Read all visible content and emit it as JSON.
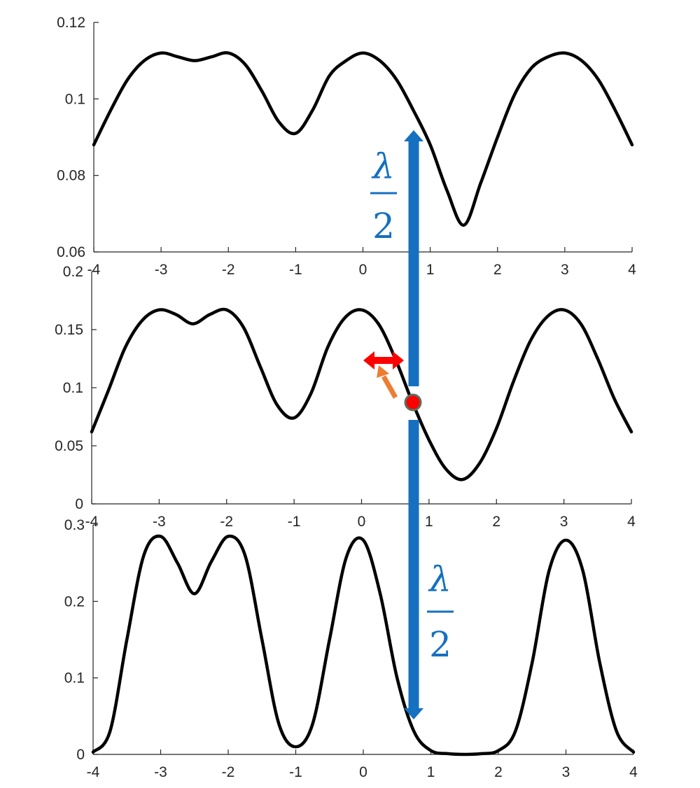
{
  "chart_data": [
    {
      "type": "line",
      "panel": "top",
      "xlim": [
        -4,
        4
      ],
      "ylim": [
        0.06,
        0.12
      ],
      "xticks": [
        "-4",
        "-3",
        "-2",
        "-1",
        "0",
        "1",
        "2",
        "3",
        "4"
      ],
      "yticks": [
        "0.06",
        "0.08",
        "0.1",
        "0.12"
      ],
      "grid": false,
      "series": [
        {
          "color": "#000000",
          "x": [
            -4,
            -3.75,
            -3.5,
            -3.25,
            -3,
            -2.75,
            -2.5,
            -2.25,
            -2,
            -1.75,
            -1.5,
            -1.25,
            -1,
            -0.75,
            -0.5,
            -0.25,
            0,
            0.25,
            0.5,
            0.75,
            1,
            1.25,
            1.5,
            1.75,
            2,
            2.25,
            2.5,
            2.75,
            3,
            3.25,
            3.5,
            3.75,
            4
          ],
          "y": [
            0.088,
            0.097,
            0.105,
            0.11,
            0.112,
            0.111,
            0.11,
            0.111,
            0.112,
            0.109,
            0.102,
            0.094,
            0.091,
            0.097,
            0.106,
            0.11,
            0.112,
            0.11,
            0.105,
            0.097,
            0.088,
            0.076,
            0.067,
            0.078,
            0.09,
            0.101,
            0.108,
            0.111,
            0.112,
            0.11,
            0.105,
            0.097,
            0.088
          ]
        }
      ]
    },
    {
      "type": "line",
      "panel": "middle",
      "xlim": [
        -4,
        4
      ],
      "ylim": [
        0,
        0.2
      ],
      "xticks": [
        "-4",
        "-3",
        "-2",
        "-1",
        "0",
        "1",
        "2",
        "3",
        "4"
      ],
      "yticks": [
        "0",
        "0.05",
        "0.1",
        "0.15",
        "0.2"
      ],
      "grid": false,
      "series": [
        {
          "color": "#000000",
          "x": [
            -4,
            -3.75,
            -3.5,
            -3.25,
            -3,
            -2.75,
            -2.5,
            -2.25,
            -2,
            -1.75,
            -1.5,
            -1.25,
            -1,
            -0.75,
            -0.5,
            -0.25,
            0,
            0.25,
            0.5,
            0.75,
            1,
            1.25,
            1.5,
            1.75,
            2,
            2.25,
            2.5,
            2.75,
            3,
            3.25,
            3.5,
            3.75,
            4
          ],
          "y": [
            0.062,
            0.098,
            0.135,
            0.158,
            0.167,
            0.163,
            0.155,
            0.163,
            0.167,
            0.152,
            0.118,
            0.085,
            0.074,
            0.095,
            0.135,
            0.16,
            0.167,
            0.155,
            0.125,
            0.088,
            0.055,
            0.03,
            0.021,
            0.035,
            0.065,
            0.105,
            0.14,
            0.161,
            0.167,
            0.155,
            0.125,
            0.09,
            0.062
          ]
        }
      ]
    },
    {
      "type": "line",
      "panel": "bottom",
      "xlim": [
        -4,
        4
      ],
      "ylim": [
        0,
        0.3
      ],
      "xticks": [
        "-4",
        "-3",
        "-2",
        "-1",
        "0",
        "1",
        "2",
        "3",
        "4"
      ],
      "yticks": [
        "0",
        "0.1",
        "0.2",
        "0.3"
      ],
      "grid": false,
      "series": [
        {
          "color": "#000000",
          "x": [
            -4,
            -3.75,
            -3.5,
            -3.25,
            -3,
            -2.75,
            -2.5,
            -2.25,
            -2,
            -1.75,
            -1.5,
            -1.25,
            -1,
            -0.75,
            -0.5,
            -0.25,
            0,
            0.25,
            0.5,
            0.75,
            1,
            1.25,
            1.5,
            1.75,
            2,
            2.25,
            2.5,
            2.75,
            3,
            3.25,
            3.5,
            3.75,
            4
          ],
          "y": [
            0.003,
            0.03,
            0.15,
            0.26,
            0.285,
            0.25,
            0.21,
            0.252,
            0.285,
            0.26,
            0.15,
            0.04,
            0.01,
            0.04,
            0.15,
            0.258,
            0.28,
            0.21,
            0.1,
            0.03,
            0.005,
            0.001,
            0.0,
            0.001,
            0.005,
            0.03,
            0.12,
            0.24,
            0.28,
            0.24,
            0.12,
            0.03,
            0.003
          ]
        }
      ]
    }
  ],
  "annotations": {
    "lambda_symbol": "λ",
    "two": "2",
    "marker_color": "#ff0000",
    "marker_edge_color": "#5a7060",
    "arrow_colors": {
      "vertical": "#1570c0",
      "horizontal": "#ff0000",
      "diagonal": "#ed7d31"
    },
    "marker_x": 0.75,
    "marker_y": 0.088,
    "vertical_arrow_x": 0.75
  }
}
